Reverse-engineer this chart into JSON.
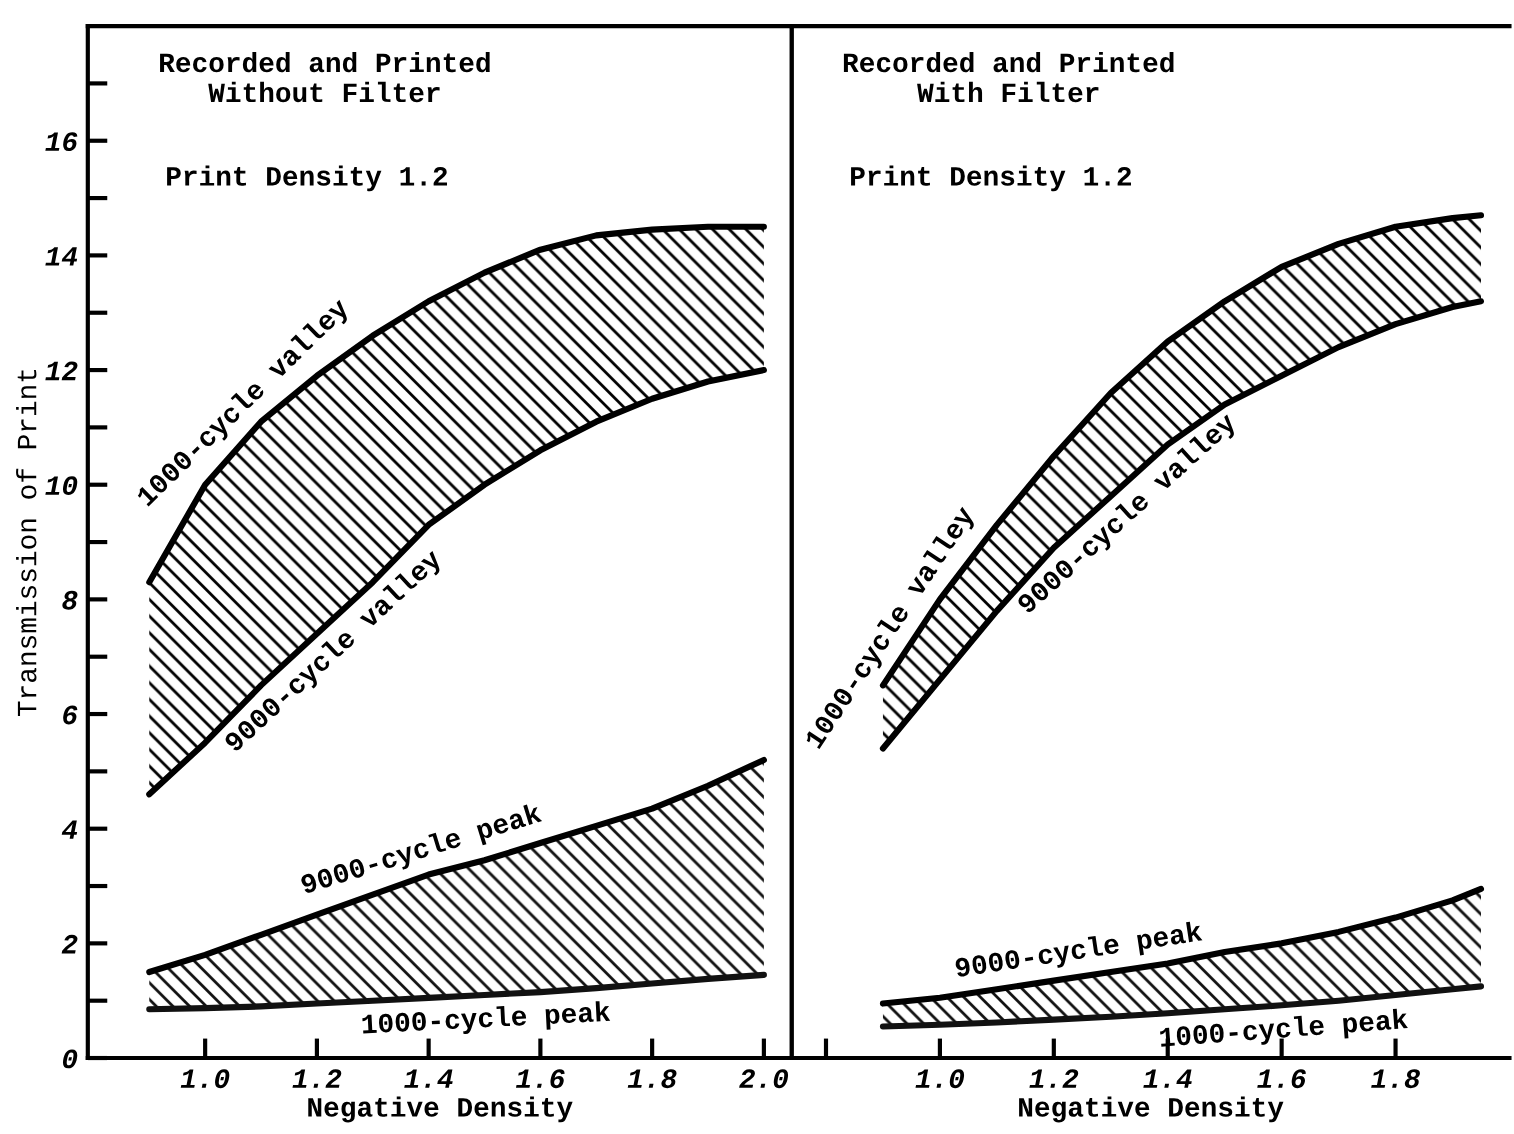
{
  "chart_data": [
    {
      "type": "line",
      "title": "Recorded and Printed\nWithout Filter",
      "subtitle": "Print Density 1.2",
      "xlabel": "Negative Density",
      "ylabel": "Transmission of Print",
      "x": [
        0.9,
        1.0,
        1.1,
        1.2,
        1.3,
        1.4,
        1.5,
        1.6,
        1.7,
        1.8,
        1.9,
        2.0
      ],
      "series": [
        {
          "name": "1000-cycle valley",
          "color": "#000000",
          "values": [
            8.3,
            10.0,
            11.1,
            11.9,
            12.6,
            13.2,
            13.7,
            14.1,
            14.35,
            14.45,
            14.5,
            14.5
          ]
        },
        {
          "name": "9000-cycle valley",
          "color": "#000000",
          "values": [
            4.6,
            5.5,
            6.5,
            7.4,
            8.3,
            9.3,
            10.0,
            10.6,
            11.1,
            11.5,
            11.8,
            12.0
          ],
          "lower": [
            4.6,
            5.5,
            6.5,
            7.4,
            8.3,
            9.3,
            10.0,
            10.6,
            11.1,
            11.5,
            11.8,
            12.0
          ],
          "upper": [
            8.3,
            10.0,
            11.1,
            11.9,
            12.6,
            13.2,
            13.7,
            14.1,
            14.35,
            14.45,
            14.5,
            14.5
          ]
        },
        {
          "name": "9000-cycle peak",
          "color": "#000000",
          "values": [
            1.5,
            1.8,
            2.15,
            2.5,
            2.85,
            3.2,
            3.45,
            3.75,
            4.05,
            4.35,
            4.75,
            5.2
          ]
        },
        {
          "name": "1000-cycle peak",
          "color": "#111111",
          "values": [
            0.85,
            0.87,
            0.9,
            0.95,
            1.0,
            1.05,
            1.1,
            1.15,
            1.22,
            1.3,
            1.38,
            1.45
          ],
          "lower": [
            0.85,
            0.87,
            0.9,
            0.95,
            1.0,
            1.05,
            1.1,
            1.15,
            1.22,
            1.3,
            1.38,
            1.45
          ],
          "upper": [
            1.5,
            1.8,
            2.15,
            2.5,
            2.85,
            3.2,
            3.45,
            3.75,
            4.05,
            4.35,
            4.75,
            5.2
          ]
        }
      ],
      "xlim": [
        0.79,
        2.05
      ],
      "ylim": [
        0,
        18
      ],
      "xticks": [
        {
          "value": 1.0,
          "label": "1.0"
        },
        {
          "value": 1.2,
          "label": "1.2"
        },
        {
          "value": 1.4,
          "label": "1.4"
        },
        {
          "value": 1.6,
          "label": "1.6"
        },
        {
          "value": 1.8,
          "label": "1.8"
        },
        {
          "value": 2.0,
          "label": "2.0"
        }
      ],
      "yticks": [
        0,
        {
          "value": 1,
          "label": null
        },
        2,
        {
          "value": 3,
          "label": null
        },
        4,
        {
          "value": 5,
          "label": null
        },
        6,
        {
          "value": 7,
          "label": null
        },
        8,
        {
          "value": 9,
          "label": null
        },
        10,
        {
          "value": 11,
          "label": null
        },
        12,
        {
          "value": 13,
          "label": null
        },
        14,
        {
          "value": 15,
          "label": null
        },
        16,
        {
          "value": 17,
          "label": null
        }
      ]
    },
    {
      "type": "line",
      "title": "Recorded and Printed\nWith Filter",
      "subtitle": "Print Density 1.2",
      "xlabel": "Negative Density",
      "x": [
        0.9,
        1.0,
        1.1,
        1.2,
        1.3,
        1.4,
        1.5,
        1.6,
        1.7,
        1.8,
        1.9,
        1.95
      ],
      "series": [
        {
          "name": "1000-cycle valley",
          "color": "#000000",
          "values": [
            6.5,
            8.0,
            9.3,
            10.5,
            11.6,
            12.5,
            13.2,
            13.8,
            14.2,
            14.5,
            14.65,
            14.7
          ]
        },
        {
          "name": "9000-cycle valley",
          "color": "#000000",
          "values": [
            5.4,
            6.6,
            7.8,
            8.9,
            9.8,
            10.7,
            11.4,
            11.9,
            12.4,
            12.8,
            13.1,
            13.2
          ],
          "lower": [
            5.4,
            6.6,
            7.8,
            8.9,
            9.8,
            10.7,
            11.4,
            11.9,
            12.4,
            12.8,
            13.1,
            13.2
          ],
          "upper": [
            6.5,
            8.0,
            9.3,
            10.5,
            11.6,
            12.5,
            13.2,
            13.8,
            14.2,
            14.5,
            14.65,
            14.7
          ]
        },
        {
          "name": "9000-cycle peak",
          "color": "#000000",
          "values": [
            0.95,
            1.05,
            1.2,
            1.35,
            1.5,
            1.65,
            1.85,
            2.0,
            2.2,
            2.45,
            2.75,
            2.95
          ]
        },
        {
          "name": "1000-cycle peak",
          "color": "#111111",
          "values": [
            0.55,
            0.58,
            0.62,
            0.67,
            0.72,
            0.78,
            0.85,
            0.92,
            1.0,
            1.1,
            1.2,
            1.25
          ],
          "lower": [
            0.55,
            0.58,
            0.62,
            0.67,
            0.72,
            0.78,
            0.85,
            0.92,
            1.0,
            1.1,
            1.2,
            1.25
          ],
          "upper": [
            0.95,
            1.05,
            1.2,
            1.35,
            1.5,
            1.65,
            1.85,
            2.0,
            2.2,
            2.45,
            2.75,
            2.95
          ]
        }
      ],
      "xlim": [
        0.74,
        2.0
      ],
      "ylim": [
        0,
        18
      ],
      "xticks": [
        {
          "value": 0.8,
          "label": null
        },
        {
          "value": 1.0,
          "label": "1.0"
        },
        {
          "value": 1.2,
          "label": "1.2"
        },
        {
          "value": 1.4,
          "label": "1.4"
        },
        {
          "value": 1.6,
          "label": "1.6"
        },
        {
          "value": 1.8,
          "label": "1.8"
        }
      ],
      "tick_labels": "x"
    }
  ]
}
